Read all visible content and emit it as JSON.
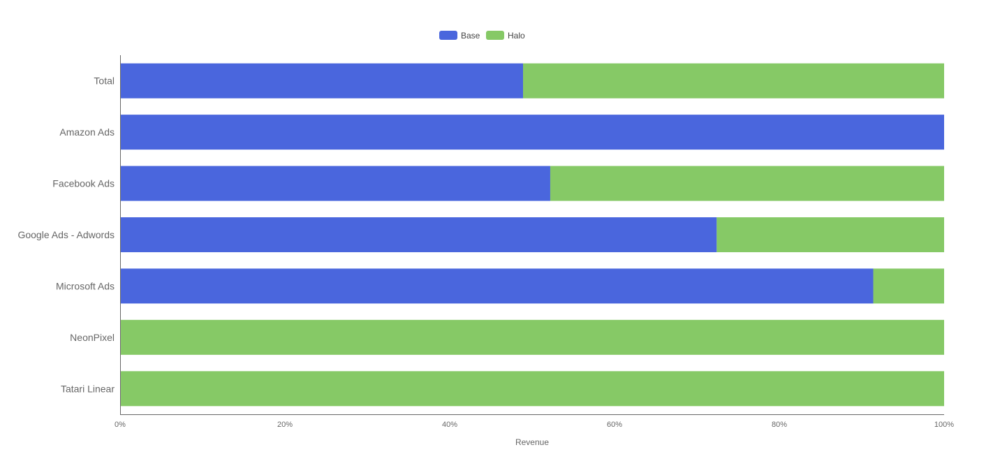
{
  "chart_data": {
    "type": "bar",
    "orientation": "horizontal",
    "stacked": true,
    "normalized": true,
    "categories": [
      "Total",
      "Amazon Ads",
      "Facebook Ads",
      "Google Ads - Adwords",
      "Microsoft Ads",
      "NeonPixel",
      "Tatari Linear"
    ],
    "series": [
      {
        "name": "Base",
        "color": "#4a66dd",
        "values": [
          48.9,
          100,
          52.2,
          72.4,
          91.4,
          0,
          0
        ]
      },
      {
        "name": "Halo",
        "color": "#86c966",
        "values": [
          51.1,
          0,
          47.8,
          27.6,
          8.6,
          100,
          100
        ]
      }
    ],
    "xlabel": "Revenue",
    "ylabel": "",
    "xlim": [
      0,
      100
    ],
    "x_ticks": [
      "0%",
      "20%",
      "40%",
      "60%",
      "80%",
      "100%"
    ],
    "legend_position": "top-center",
    "grid": false
  }
}
